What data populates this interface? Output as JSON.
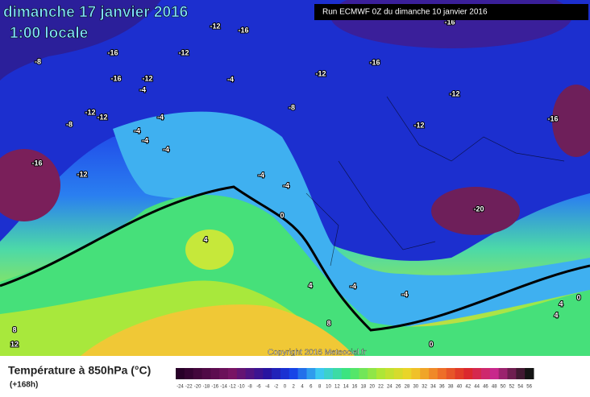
{
  "header": {
    "title": "dimanche 17 janvier 2016",
    "subtitle": "1:00 locale",
    "run": "Run ECMWF 0Z du dimanche 10 janvier 2016"
  },
  "map": {
    "contour_labels": [
      "-16",
      "-12",
      "-16",
      "-12",
      "-16",
      "-8",
      "-16",
      "-12",
      "-4",
      "-4",
      "-12",
      "-12",
      "-8",
      "-12",
      "-16",
      "-12",
      "-8",
      "-4",
      "-4",
      "-4",
      "-4",
      "-16",
      "-12",
      "-4",
      "-4",
      "-20",
      "-16",
      "0",
      "4",
      "-4",
      "-4",
      "4",
      "8",
      "8",
      "12",
      "0",
      "4",
      "4",
      "0",
      "-12"
    ],
    "copyright": "Copyright 2016 Meteociel.fr"
  },
  "legend": {
    "title": "Température à 850hPa (°C)",
    "lead": "(+168h)",
    "scale": [
      -24,
      -22,
      -20,
      -18,
      -16,
      -14,
      -12,
      -10,
      -8,
      -6,
      -4,
      -2,
      0,
      2,
      4,
      6,
      8,
      10,
      12,
      14,
      16,
      18,
      20,
      22,
      24,
      26,
      28,
      30,
      32,
      34,
      36,
      38,
      40,
      42,
      44,
      46,
      48,
      50,
      52,
      54,
      56
    ]
  }
}
